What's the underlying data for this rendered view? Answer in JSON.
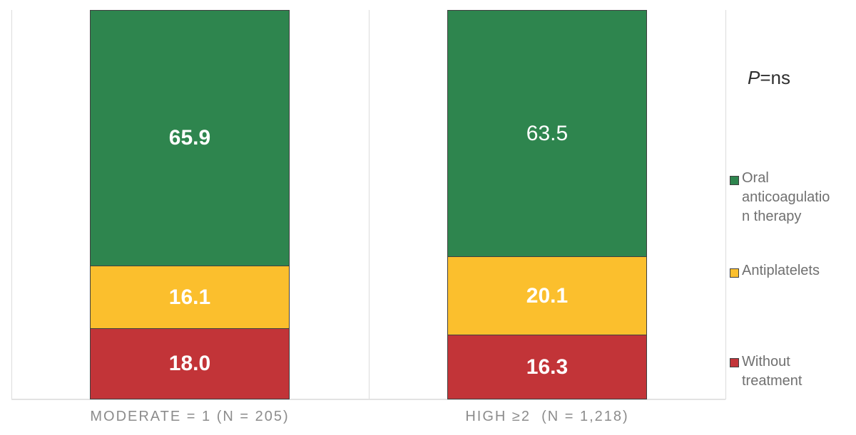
{
  "colors": {
    "background": "#FFFFFF",
    "green": "#2E854E",
    "amber": "#FBBF2D",
    "red": "#C23438",
    "bar_border": "#404040",
    "gridline": "#DCDCDC",
    "axis_line": "#E3E3E3",
    "category_label": "#8C8C8C",
    "legend_text": "#707070",
    "annotation_text": "#2F2F2F",
    "value_label": "#FFFFFF"
  },
  "annotation": {
    "p_italic": "P",
    "p_rest": "=ns"
  },
  "legend": {
    "position": "right",
    "items": [
      {
        "label": "Oral anticoagulation therapy",
        "lines": [
          "Oral",
          "anticoagulatio",
          "n therapy"
        ],
        "color": "#2E854E"
      },
      {
        "label": "Antiplatelets",
        "lines": [
          "Antiplatelets"
        ],
        "color": "#FBBF2D"
      },
      {
        "label": "Without treatment",
        "lines": [
          "Without",
          "treatment"
        ],
        "color": "#C23438"
      }
    ]
  },
  "chart_data": {
    "type": "bar",
    "stacked": true,
    "unit": "percent",
    "title": "",
    "xlabel": "",
    "ylabel": "",
    "ylim": [
      0,
      100
    ],
    "grid": "vertical-category-separators",
    "legend_position": "right",
    "annotation": "P=ns",
    "categories": [
      "MODERATE = 1 (N = 205)",
      "HIGH ≥2  (N = 1,218)"
    ],
    "series_order": "top-to-bottom",
    "series": [
      {
        "name": "Oral anticoagulation therapy",
        "color": "#2E854E",
        "values": [
          65.9,
          63.5
        ],
        "label_bold": [
          true,
          false
        ]
      },
      {
        "name": "Antiplatelets",
        "color": "#FBBF2D",
        "values": [
          16.1,
          20.1
        ],
        "label_bold": [
          true,
          true
        ]
      },
      {
        "name": "Without treatment",
        "color": "#C23438",
        "values": [
          18.0,
          16.3
        ],
        "label_bold": [
          true,
          true
        ]
      }
    ]
  }
}
